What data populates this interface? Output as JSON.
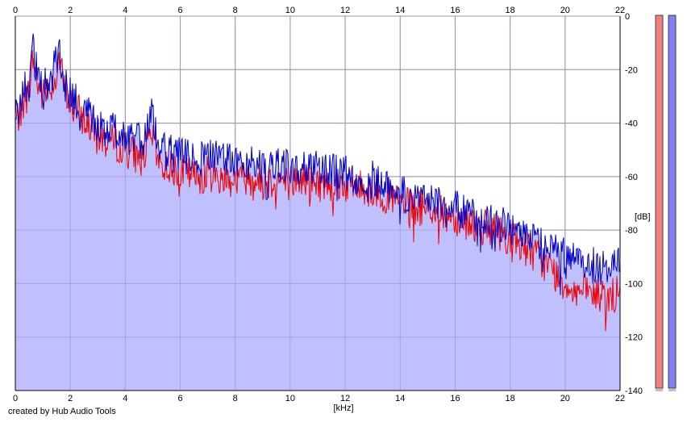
{
  "credit": "created by Hub Audio Tools",
  "chart_data": {
    "type": "line",
    "xlabel": "[kHz]",
    "ylabel": "[dB]",
    "xlim": [
      0,
      22
    ],
    "ylim": [
      -140,
      0
    ],
    "xticks": [
      "0",
      "2",
      "4",
      "6",
      "8",
      "10",
      "12",
      "14",
      "16",
      "18",
      "20",
      "22"
    ],
    "yticks": [
      "0",
      "-20",
      "-40",
      "-60",
      "-80",
      "-100",
      "-120",
      "-140"
    ],
    "grid": true,
    "area_fill_color": "#c0c0ff",
    "series": [
      {
        "color": "#0000cc",
        "x": [
          0,
          0.3,
          0.5,
          0.65,
          0.8,
          1.0,
          1.2,
          1.4,
          1.6,
          1.8,
          2.0,
          2.3,
          2.6,
          3.0,
          3.4,
          3.8,
          4.2,
          4.6,
          5.0,
          5.2,
          5.5,
          6.0,
          6.5,
          7.0,
          7.5,
          8.0,
          8.5,
          9.0,
          9.5,
          10.0,
          10.5,
          11.0,
          11.5,
          12.0,
          12.5,
          13.0,
          13.5,
          14.0,
          14.5,
          15.0,
          15.5,
          16.0,
          16.5,
          17.0,
          17.5,
          18.0,
          18.5,
          19.0,
          19.5,
          20.0,
          20.5,
          21.0,
          21.5,
          22.0
        ],
        "values": [
          -38,
          -28,
          -25,
          -12,
          -22,
          -28,
          -24,
          -20,
          -13,
          -25,
          -30,
          -32,
          -35,
          -40,
          -42,
          -44,
          -46,
          -47,
          -36,
          -48,
          -50,
          -52,
          -54,
          -52,
          -53,
          -55,
          -54,
          -56,
          -55,
          -57,
          -55,
          -57,
          -58,
          -59,
          -60,
          -61,
          -63,
          -66,
          -68,
          -67,
          -70,
          -72,
          -74,
          -76,
          -77,
          -79,
          -81,
          -84,
          -87,
          -90,
          -92,
          -93,
          -94,
          -92
        ]
      },
      {
        "color": "#ee0000",
        "x": [
          0,
          0.3,
          0.5,
          0.65,
          0.8,
          1.0,
          1.2,
          1.4,
          1.6,
          1.8,
          2.0,
          2.3,
          2.6,
          3.0,
          3.4,
          3.8,
          4.2,
          4.6,
          5.0,
          5.2,
          5.5,
          6.0,
          6.5,
          7.0,
          7.5,
          8.0,
          8.5,
          9.0,
          9.5,
          10.0,
          10.5,
          11.0,
          11.5,
          12.0,
          12.5,
          13.0,
          13.5,
          14.0,
          14.5,
          15.0,
          15.5,
          16.0,
          16.5,
          17.0,
          17.5,
          18.0,
          18.5,
          19.0,
          19.5,
          20.0,
          20.5,
          21.0,
          21.5,
          22.0
        ],
        "values": [
          -40,
          -32,
          -28,
          -15,
          -25,
          -30,
          -27,
          -24,
          -16,
          -28,
          -33,
          -36,
          -40,
          -45,
          -47,
          -48,
          -51,
          -53,
          -45,
          -55,
          -56,
          -58,
          -60,
          -59,
          -60,
          -61,
          -60,
          -62,
          -61,
          -62,
          -61,
          -63,
          -62,
          -63,
          -64,
          -65,
          -67,
          -70,
          -72,
          -71,
          -74,
          -75,
          -77,
          -79,
          -80,
          -83,
          -86,
          -90,
          -95,
          -100,
          -103,
          -104,
          -105,
          -104
        ]
      }
    ],
    "level_bars": [
      {
        "color": "#f08080"
      },
      {
        "color": "#8080f0"
      }
    ]
  }
}
